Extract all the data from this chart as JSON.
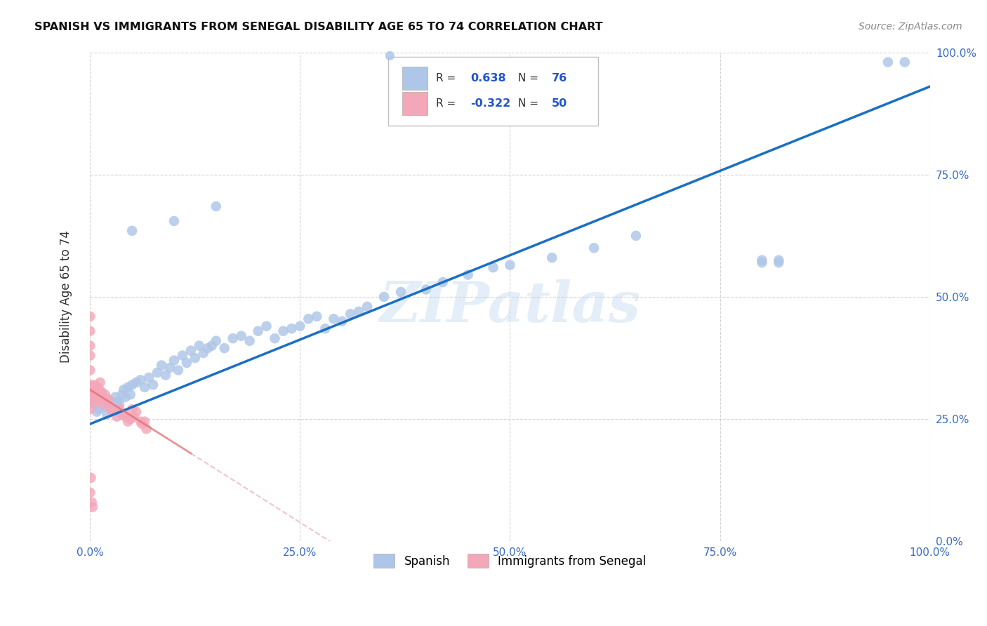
{
  "title": "SPANISH VS IMMIGRANTS FROM SENEGAL DISABILITY AGE 65 TO 74 CORRELATION CHART",
  "source": "Source: ZipAtlas.com",
  "ylabel": "Disability Age 65 to 74",
  "xlim": [
    0,
    1
  ],
  "ylim": [
    0,
    1
  ],
  "xticks": [
    0.0,
    0.25,
    0.5,
    0.75,
    1.0
  ],
  "yticks": [
    0.0,
    0.25,
    0.5,
    0.75,
    1.0
  ],
  "xtick_labels": [
    "0.0%",
    "25.0%",
    "50.0%",
    "75.0%",
    "100.0%"
  ],
  "ytick_labels": [
    "0.0%",
    "25.0%",
    "50.0%",
    "75.0%",
    "100.0%"
  ],
  "spanish_R": 0.638,
  "spanish_N": 76,
  "senegal_R": -0.322,
  "senegal_N": 50,
  "spanish_color": "#aec6e8",
  "senegal_color": "#f4a7b9",
  "spanish_line_color": "#1a6fc4",
  "senegal_line_color": "#e07070",
  "watermark": "ZIPatlas",
  "legend_label_spanish": "Spanish",
  "legend_label_senegal": "Immigrants from Senegal",
  "spanish_x": [
    0.005,
    0.008,
    0.01,
    0.012,
    0.015,
    0.018,
    0.02,
    0.022,
    0.025,
    0.028,
    0.03,
    0.032,
    0.035,
    0.038,
    0.04,
    0.042,
    0.045,
    0.048,
    0.05,
    0.055,
    0.06,
    0.065,
    0.07,
    0.075,
    0.08,
    0.085,
    0.09,
    0.095,
    0.1,
    0.105,
    0.11,
    0.115,
    0.12,
    0.125,
    0.13,
    0.135,
    0.14,
    0.145,
    0.15,
    0.16,
    0.17,
    0.18,
    0.19,
    0.2,
    0.21,
    0.22,
    0.23,
    0.24,
    0.25,
    0.26,
    0.27,
    0.28,
    0.29,
    0.3,
    0.31,
    0.32,
    0.33,
    0.35,
    0.37,
    0.4,
    0.42,
    0.45,
    0.48,
    0.5,
    0.55,
    0.6,
    0.65,
    0.8,
    0.8,
    0.82,
    0.82,
    0.95,
    0.97,
    0.05,
    0.1,
    0.15
  ],
  "spanish_y": [
    0.28,
    0.265,
    0.27,
    0.29,
    0.3,
    0.275,
    0.26,
    0.28,
    0.285,
    0.27,
    0.295,
    0.285,
    0.28,
    0.3,
    0.31,
    0.295,
    0.315,
    0.3,
    0.32,
    0.325,
    0.33,
    0.315,
    0.335,
    0.32,
    0.345,
    0.36,
    0.34,
    0.355,
    0.37,
    0.35,
    0.38,
    0.365,
    0.39,
    0.375,
    0.4,
    0.385,
    0.395,
    0.4,
    0.41,
    0.395,
    0.415,
    0.42,
    0.41,
    0.43,
    0.44,
    0.415,
    0.43,
    0.435,
    0.44,
    0.455,
    0.46,
    0.435,
    0.455,
    0.45,
    0.465,
    0.47,
    0.48,
    0.5,
    0.51,
    0.515,
    0.53,
    0.545,
    0.56,
    0.565,
    0.58,
    0.6,
    0.625,
    0.57,
    0.575,
    0.57,
    0.575,
    0.98,
    0.98,
    0.635,
    0.655,
    0.685
  ],
  "senegal_x": [
    0.0,
    0.0,
    0.0,
    0.0,
    0.0,
    0.0,
    0.0,
    0.0,
    0.0,
    0.0,
    0.002,
    0.003,
    0.004,
    0.005,
    0.006,
    0.007,
    0.008,
    0.009,
    0.01,
    0.011,
    0.012,
    0.013,
    0.014,
    0.015,
    0.016,
    0.017,
    0.018,
    0.02,
    0.022,
    0.025,
    0.027,
    0.03,
    0.032,
    0.035,
    0.037,
    0.04,
    0.042,
    0.045,
    0.048,
    0.05,
    0.052,
    0.055,
    0.06,
    0.062,
    0.065,
    0.067,
    0.0,
    0.001,
    0.002,
    0.003
  ],
  "senegal_y": [
    0.29,
    0.3,
    0.31,
    0.32,
    0.35,
    0.38,
    0.4,
    0.43,
    0.46,
    0.27,
    0.29,
    0.3,
    0.31,
    0.32,
    0.295,
    0.285,
    0.305,
    0.315,
    0.3,
    0.31,
    0.325,
    0.29,
    0.305,
    0.295,
    0.28,
    0.29,
    0.3,
    0.285,
    0.29,
    0.27,
    0.265,
    0.27,
    0.255,
    0.27,
    0.26,
    0.26,
    0.255,
    0.245,
    0.25,
    0.27,
    0.255,
    0.265,
    0.245,
    0.24,
    0.245,
    0.23,
    0.1,
    0.13,
    0.08,
    0.07
  ],
  "blue_line_x0": 0.0,
  "blue_line_y0": 0.24,
  "blue_line_x1": 1.0,
  "blue_line_y1": 0.93,
  "red_line_x0": 0.0,
  "red_line_y0": 0.31,
  "red_line_x1": 0.12,
  "red_line_y1": 0.18
}
